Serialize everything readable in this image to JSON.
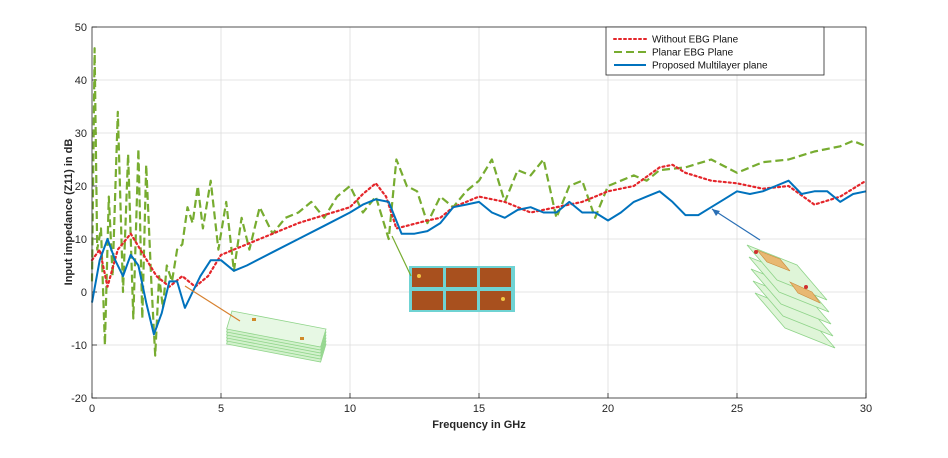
{
  "chart_data": {
    "type": "line",
    "title": "",
    "xlabel": "Frequency in GHz",
    "ylabel": "Input impedance (Z11) in dB",
    "xlim": [
      0,
      30
    ],
    "ylim": [
      -20,
      50
    ],
    "xticks": [
      "0",
      "5",
      "10",
      "15",
      "20",
      "25",
      "30"
    ],
    "yticks": [
      "-20",
      "-10",
      "0",
      "10",
      "20",
      "30",
      "40",
      "50"
    ],
    "grid": true,
    "legend_position": "top-right",
    "series": [
      {
        "name": "Without EBG Plane",
        "color": "#e4262b",
        "style": "dotted",
        "x": [
          0,
          0.3,
          0.6,
          1.0,
          1.5,
          2.0,
          2.5,
          3.0,
          3.5,
          4.0,
          4.5,
          5.0,
          6.0,
          7.0,
          8.0,
          9.0,
          10.0,
          10.5,
          11.0,
          11.4,
          11.8,
          12.2,
          13.0,
          13.5,
          14.0,
          15.0,
          16.0,
          17.0,
          18.0,
          19.0,
          20.0,
          21.0,
          22.0,
          22.5,
          23.0,
          24.0,
          25.0,
          26.0,
          27.0,
          28.0,
          29.0,
          30.0
        ],
        "y": [
          6,
          8,
          1,
          8,
          11,
          7,
          3,
          1,
          3,
          1,
          3,
          7,
          9,
          11,
          13,
          14.5,
          16,
          18.5,
          20.5,
          18,
          12,
          12.5,
          13.5,
          14,
          16,
          18,
          17,
          15,
          16,
          17,
          19,
          20,
          23.5,
          24,
          22.5,
          21,
          20.5,
          19.5,
          20,
          16.5,
          18,
          21
        ]
      },
      {
        "name": "Planar EBG Plane",
        "color": "#77ac30",
        "style": "dashed",
        "x": [
          0,
          0.1,
          0.2,
          0.35,
          0.5,
          0.65,
          0.8,
          1.0,
          1.2,
          1.4,
          1.6,
          1.8,
          1.95,
          2.1,
          2.3,
          2.45,
          2.6,
          2.75,
          2.9,
          3.1,
          3.3,
          3.5,
          3.7,
          3.9,
          4.1,
          4.3,
          4.6,
          4.9,
          5.2,
          5.5,
          5.8,
          6.1,
          6.5,
          7.0,
          7.5,
          8.0,
          8.5,
          9.0,
          9.5,
          10.0,
          10.5,
          11.0,
          11.5,
          11.8,
          12.2,
          12.6,
          13.0,
          13.5,
          14.0,
          14.5,
          15.0,
          15.5,
          16.0,
          16.5,
          17.0,
          17.5,
          18.0,
          18.5,
          19.0,
          19.5,
          20.0,
          20.5,
          21.0,
          21.5,
          22.0,
          23.0,
          24.0,
          25.0,
          26.0,
          27.0,
          28.0,
          29.0,
          29.5,
          30.0
        ],
        "y": [
          2,
          46,
          8,
          12,
          -10,
          18,
          3,
          34,
          0,
          26,
          -5,
          27,
          -5,
          24,
          2,
          -12,
          3,
          -3,
          5,
          2,
          8,
          9,
          16,
          13,
          20,
          12,
          21,
          8,
          17,
          4,
          14,
          8,
          16,
          11,
          14,
          15,
          17,
          14,
          18,
          20,
          15,
          18,
          10,
          25,
          20,
          19,
          13,
          18,
          16,
          19,
          21,
          25,
          17,
          23,
          22,
          25,
          14,
          20,
          21,
          14,
          20,
          21,
          22,
          21,
          23,
          23.5,
          25,
          22.5,
          24.5,
          25,
          26.5,
          27.5,
          28.5,
          27.5
        ]
      },
      {
        "name": "Proposed Multilayer plane",
        "color": "#0072bd",
        "style": "solid",
        "x": [
          0,
          0.3,
          0.6,
          0.9,
          1.2,
          1.5,
          1.8,
          2.1,
          2.4,
          2.7,
          3.0,
          3.3,
          3.6,
          3.9,
          4.2,
          4.6,
          5.0,
          5.5,
          6.0,
          7.0,
          8.0,
          9.0,
          10.0,
          10.5,
          11.0,
          11.5,
          12.0,
          12.5,
          13.0,
          13.5,
          14.0,
          14.5,
          15.0,
          15.5,
          16.0,
          16.5,
          17.0,
          17.5,
          18.0,
          18.5,
          19.0,
          19.5,
          20.0,
          20.5,
          21.0,
          21.5,
          22.0,
          22.5,
          23.0,
          23.5,
          24.0,
          24.5,
          25.0,
          25.5,
          26.0,
          26.5,
          27.0,
          27.5,
          28.0,
          28.5,
          29.0,
          29.5,
          30.0
        ],
        "y": [
          -2,
          6,
          10,
          6,
          3,
          7,
          5,
          -2,
          -8,
          -4,
          2,
          2,
          -3,
          0,
          3,
          6,
          6,
          4,
          5,
          7.5,
          10,
          12.5,
          15,
          16.5,
          17.5,
          17,
          11,
          11,
          11.5,
          13,
          16,
          16.5,
          17,
          15,
          14,
          15.5,
          16,
          15,
          15,
          17,
          15,
          15,
          13.5,
          15,
          17,
          18,
          19,
          17,
          14.5,
          14.5,
          16,
          17.5,
          19,
          18.5,
          19,
          20,
          21,
          18.5,
          19,
          19,
          17,
          18.5,
          19
        ]
      }
    ],
    "insets": [
      {
        "name": "multilayer-stack-low",
        "color": "#a8e6a0"
      },
      {
        "name": "planar-ebg-layout",
        "color": "#b5531a"
      },
      {
        "name": "multilayer-stack-high",
        "color": "#a8e6a0"
      }
    ]
  }
}
